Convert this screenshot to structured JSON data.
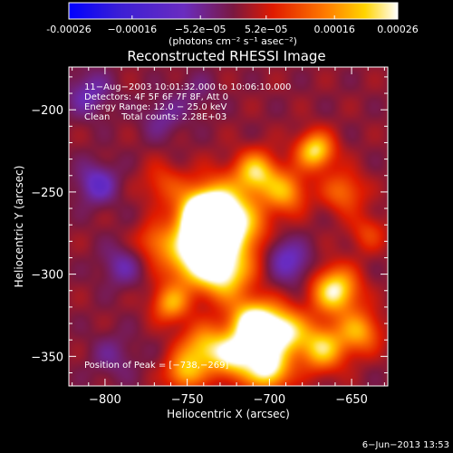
{
  "chart_data": {
    "type": "heatmap",
    "title": "Reconstructed RHESSI Image",
    "xlabel": "Heliocentric X (arcsec)",
    "ylabel": "Heliocentric Y (arcsec)",
    "xlim": [
      -822,
      -628
    ],
    "ylim": [
      -368,
      -174
    ],
    "x_ticks": [
      -800,
      -750,
      -700,
      -650
    ],
    "x_tick_labels": [
      "−800",
      "−750",
      "−700",
      "−650"
    ],
    "y_ticks": [
      -200,
      -250,
      -300,
      -350
    ],
    "y_tick_labels": [
      "−200",
      "−250",
      "−300",
      "−350"
    ],
    "colorbar": {
      "range": [
        -0.00026,
        0.00026
      ],
      "ticks": [
        -0.00026,
        -0.00016,
        -5.2e-05,
        5.2e-05,
        0.00016,
        0.00026
      ],
      "tick_labels": [
        "-0.00026",
        "−0.00016",
        "−5.2e−05",
        "5.2e−05",
        "0.00016",
        "0.00026"
      ],
      "unit": "(photons cm⁻² s⁻¹ asec⁻²)",
      "colormap": "blue-purple-red-orange-yellow-white"
    },
    "annotations": [
      "11−Aug−2003 10:01:32.000 to 10:06:10.000",
      "Detectors: 4F 5F 6F 7F 8F, Att 0",
      "Energy Range: 12.0 − 25.0 keV",
      "Clean    Total counts: 2.28E+03"
    ],
    "peak_label": "Position of Peak = [−738,−269]",
    "peak_position": [
      -738,
      -269
    ],
    "grid": false,
    "blobs": [
      {
        "x": -740,
        "y": -267,
        "amp": 0.00034,
        "s": 10
      },
      {
        "x": -732,
        "y": -262,
        "amp": 0.00022,
        "s": 14
      },
      {
        "x": -748,
        "y": -290,
        "amp": 0.00022,
        "s": 12
      },
      {
        "x": -720,
        "y": -275,
        "amp": 0.00016,
        "s": 14
      },
      {
        "x": -728,
        "y": -300,
        "amp": 0.00022,
        "s": 11
      },
      {
        "x": -710,
        "y": -330,
        "amp": 0.00028,
        "s": 10
      },
      {
        "x": -692,
        "y": -335,
        "amp": 0.00024,
        "s": 10
      },
      {
        "x": -720,
        "y": -350,
        "amp": 0.00022,
        "s": 10
      },
      {
        "x": -700,
        "y": -358,
        "amp": 0.00024,
        "s": 9
      },
      {
        "x": -740,
        "y": -345,
        "amp": 0.00018,
        "s": 10
      },
      {
        "x": -752,
        "y": -360,
        "amp": 0.00016,
        "s": 8
      },
      {
        "x": -660,
        "y": -310,
        "amp": 0.00024,
        "s": 10
      },
      {
        "x": -668,
        "y": -345,
        "amp": 0.0002,
        "s": 10
      },
      {
        "x": -645,
        "y": -335,
        "amp": 0.00016,
        "s": 9
      },
      {
        "x": -672,
        "y": -225,
        "amp": 0.00022,
        "s": 8
      },
      {
        "x": -708,
        "y": -238,
        "amp": 0.0002,
        "s": 9
      },
      {
        "x": -690,
        "y": -250,
        "amp": 0.00016,
        "s": 9
      },
      {
        "x": -655,
        "y": -250,
        "amp": 0.00012,
        "s": 9
      },
      {
        "x": -760,
        "y": -318,
        "amp": 0.00016,
        "s": 8
      },
      {
        "x": -770,
        "y": -280,
        "amp": 0.0001,
        "s": 8
      },
      {
        "x": -765,
        "y": -245,
        "amp": 8e-05,
        "s": 9
      },
      {
        "x": -640,
        "y": -275,
        "amp": 8e-05,
        "s": 8
      },
      {
        "x": -685,
        "y": -295,
        "amp": -8e-05,
        "s": 9
      },
      {
        "x": -695,
        "y": -285,
        "amp": -6e-05,
        "s": 8
      },
      {
        "x": -805,
        "y": -245,
        "amp": -0.0001,
        "s": 9
      },
      {
        "x": -790,
        "y": -295,
        "amp": -7e-05,
        "s": 9
      },
      {
        "x": -810,
        "y": -190,
        "amp": -8e-05,
        "s": 10
      },
      {
        "x": -795,
        "y": -350,
        "amp": -5e-05,
        "s": 10
      },
      {
        "x": -765,
        "y": -205,
        "amp": -6e-05,
        "s": 9
      },
      {
        "x": -745,
        "y": -190,
        "amp": -4e-05,
        "s": 9
      }
    ]
  },
  "footer": {
    "date": "6−Jun−2013 13:53"
  }
}
